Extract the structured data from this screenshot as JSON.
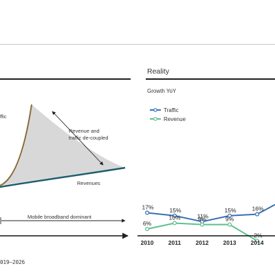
{
  "left_panel": {
    "curve_labels": {
      "traffic_partial": "ffic",
      "revenues": "Revenues",
      "decoupled_line1": "Revenue and",
      "decoupled_line2": "traffic de-coupled"
    },
    "phase_label": "Mobile broadband dominant",
    "colors": {
      "traffic": "#8a6a3a",
      "revenue": "#1f5d6e",
      "gap_fill": "#d6d6d6"
    }
  },
  "right_panel": {
    "title": "Reality",
    "subtitle": "Growth YoY"
  },
  "footer": {
    "text": "019–2026"
  },
  "chart_data": {
    "type": "line",
    "title": "Reality",
    "subtitle": "Growth YoY",
    "x": [
      2010,
      2011,
      2012,
      2013,
      2014
    ],
    "x_tick_labels": [
      "2010",
      "2011",
      "2012",
      "2013",
      "2014"
    ],
    "series": [
      {
        "name": "Traffic",
        "color": "#3a6fb5",
        "values": [
          17,
          15,
          11,
          15,
          16
        ],
        "labels": [
          "17%",
          "15%",
          "11%",
          "15%",
          "16%"
        ]
      },
      {
        "name": "Revenue",
        "color": "#5fbf8f",
        "values": [
          6,
          10,
          9,
          9,
          -2
        ],
        "labels": [
          "6%",
          "10%",
          "9%",
          "9%",
          "-2%"
        ]
      }
    ],
    "legend_placement": "top-left",
    "grid": false
  }
}
